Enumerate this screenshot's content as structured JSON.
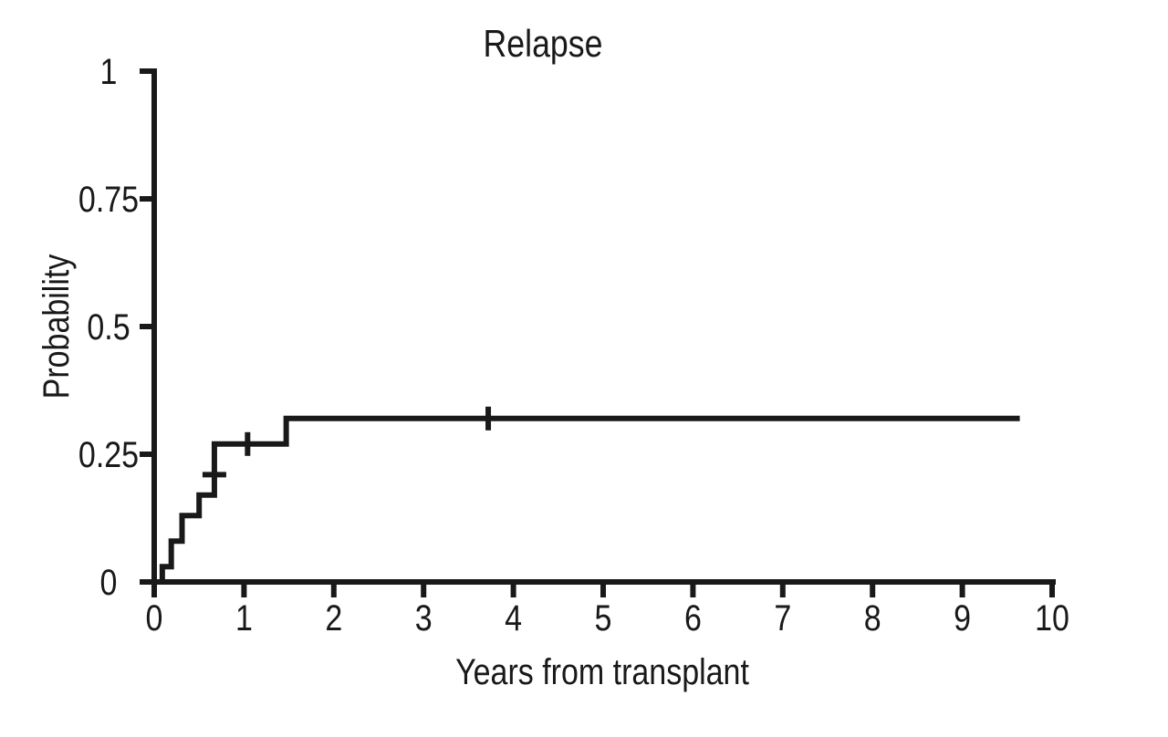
{
  "figure": {
    "background": "#ffffff",
    "line_color": "#191919",
    "text_color": "#191919"
  },
  "chart_data": {
    "type": "line",
    "subtype": "kaplan-meier-step",
    "title": "Relapse",
    "xlabel": "Years from transplant",
    "ylabel": "Probability",
    "xlim": [
      0,
      10
    ],
    "ylim": [
      0,
      1
    ],
    "grid": false,
    "legend": "none",
    "xticks": {
      "values": [
        0,
        1,
        2,
        3,
        4,
        5,
        6,
        7,
        8,
        9,
        10
      ],
      "labels": [
        "0",
        "1",
        "2",
        "3",
        "4",
        "5",
        "6",
        "7",
        "8",
        "9",
        "10"
      ]
    },
    "yticks": {
      "values": [
        0,
        0.25,
        0.5,
        0.75,
        1
      ],
      "labels": [
        "0",
        "0.25",
        "0.5",
        "0.75",
        "1"
      ]
    },
    "series": [
      {
        "name": "relapse-cumulative-incidence",
        "style": "step-post",
        "color": "#191919",
        "points": [
          [
            0,
            0
          ],
          [
            0.09,
            0.03
          ],
          [
            0.19,
            0.08
          ],
          [
            0.31,
            0.13
          ],
          [
            0.5,
            0.17
          ],
          [
            0.67,
            0.27
          ],
          [
            1.47,
            0.32
          ]
        ],
        "end_x": 9.64,
        "final_value": 0.32
      }
    ],
    "censor_marks": [
      {
        "x": 0.67,
        "y": 0.21,
        "orientation": "horizontal"
      },
      {
        "x": 1.04,
        "y": 0.27,
        "orientation": "vertical"
      },
      {
        "x": 3.72,
        "y": 0.32,
        "orientation": "vertical"
      }
    ]
  }
}
